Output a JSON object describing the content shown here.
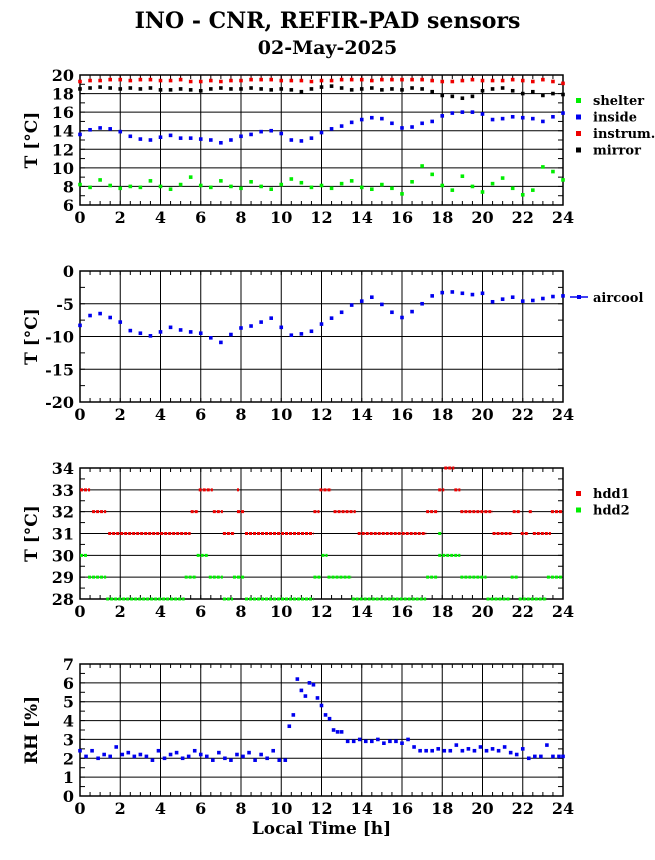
{
  "header": {
    "title": "INO - CNR, REFIR-PAD sensors",
    "subtitle": "02-May-2025"
  },
  "colors": {
    "shelter": "#00ee00",
    "inside": "#0000ee",
    "instrum": "#ee0000",
    "mirror": "#000000",
    "aircool": "#0000ee",
    "hdd1": "#ee0000",
    "hdd2": "#00ee00",
    "rh": "#0000ee"
  },
  "chart_data": [
    {
      "type": "scatter",
      "id": "temps",
      "ylabel": "T [°C]",
      "xlim": [
        0,
        24
      ],
      "ylim": [
        6,
        20
      ],
      "xticks": [
        0,
        2,
        4,
        6,
        8,
        10,
        12,
        14,
        16,
        18,
        20,
        22,
        24
      ],
      "yticks": [
        6,
        8,
        10,
        12,
        14,
        16,
        18,
        20
      ],
      "grid": true,
      "legend": "right",
      "series": [
        {
          "name": "shelter",
          "color_key": "shelter",
          "x": [
            0,
            0.5,
            1,
            1.5,
            2,
            2.5,
            3,
            3.5,
            4,
            4.5,
            5,
            5.5,
            6,
            6.5,
            7,
            7.5,
            8,
            8.5,
            9,
            9.5,
            10,
            10.5,
            11,
            11.5,
            12,
            12.5,
            13,
            13.5,
            14,
            14.5,
            15,
            15.5,
            16,
            16.5,
            17,
            17.5,
            18,
            18.5,
            19,
            19.5,
            20,
            20.5,
            21,
            21.5,
            22,
            22.5,
            23,
            23.5,
            24
          ],
          "y": [
            8.2,
            7.9,
            8.7,
            8.1,
            7.8,
            8.0,
            7.9,
            8.6,
            8.0,
            7.7,
            8.2,
            9.0,
            8.1,
            7.9,
            8.6,
            8.0,
            7.8,
            8.5,
            8.0,
            7.7,
            8.2,
            8.8,
            8.4,
            7.9,
            8.1,
            7.8,
            8.3,
            8.6,
            7.9,
            7.7,
            8.2,
            7.8,
            7.2,
            8.5,
            10.2,
            9.3,
            8.1,
            7.6,
            9.1,
            8.0,
            7.4,
            8.3,
            8.9,
            7.8,
            7.1,
            7.6,
            10.1,
            9.6,
            8.7
          ]
        },
        {
          "name": "inside",
          "color_key": "inside",
          "x": [
            0,
            0.5,
            1,
            1.5,
            2,
            2.5,
            3,
            3.5,
            4,
            4.5,
            5,
            5.5,
            6,
            6.5,
            7,
            7.5,
            8,
            8.5,
            9,
            9.5,
            10,
            10.5,
            11,
            11.5,
            12,
            12.5,
            13,
            13.5,
            14,
            14.5,
            15,
            15.5,
            16,
            16.5,
            17,
            17.5,
            18,
            18.5,
            19,
            19.5,
            20,
            20.5,
            21,
            21.5,
            22,
            22.5,
            23,
            23.5,
            24
          ],
          "y": [
            13.6,
            14.1,
            14.3,
            14.2,
            13.9,
            13.4,
            13.1,
            13.0,
            13.3,
            13.5,
            13.2,
            13.2,
            13.1,
            13.0,
            12.7,
            13.0,
            13.4,
            13.6,
            13.9,
            14.0,
            13.7,
            13.0,
            12.9,
            13.2,
            13.8,
            14.2,
            14.5,
            14.9,
            15.2,
            15.4,
            15.3,
            14.8,
            14.3,
            14.4,
            14.8,
            15.0,
            15.6,
            15.9,
            16.0,
            16.0,
            15.8,
            15.2,
            15.3,
            15.5,
            15.4,
            15.3,
            15.0,
            15.5,
            15.9
          ]
        },
        {
          "name": "instrum.",
          "color_key": "instrum",
          "x": [
            0,
            0.5,
            1,
            1.5,
            2,
            2.5,
            3,
            3.5,
            4,
            4.5,
            5,
            5.5,
            6,
            6.5,
            7,
            7.5,
            8,
            8.5,
            9,
            9.5,
            10,
            10.5,
            11,
            11.5,
            12,
            12.5,
            13,
            13.5,
            14,
            14.5,
            15,
            15.5,
            16,
            16.5,
            17,
            17.5,
            18,
            18.5,
            19,
            19.5,
            20,
            20.5,
            21,
            21.5,
            22,
            22.5,
            23,
            23.5,
            24
          ],
          "y": [
            19.3,
            19.4,
            19.4,
            19.5,
            19.5,
            19.4,
            19.5,
            19.5,
            19.4,
            19.4,
            19.5,
            19.3,
            19.3,
            19.4,
            19.3,
            19.4,
            19.4,
            19.5,
            19.5,
            19.5,
            19.4,
            19.4,
            19.4,
            19.3,
            19.4,
            19.4,
            19.5,
            19.5,
            19.5,
            19.4,
            19.5,
            19.5,
            19.5,
            19.5,
            19.5,
            19.4,
            19.3,
            19.3,
            19.4,
            19.5,
            19.4,
            19.4,
            19.4,
            19.5,
            19.4,
            19.3,
            19.5,
            19.3,
            19.1
          ]
        },
        {
          "name": "mirror",
          "color_key": "mirror",
          "x": [
            0,
            0.5,
            1,
            1.5,
            2,
            2.5,
            3,
            3.5,
            4,
            4.5,
            5,
            5.5,
            6,
            6.5,
            7,
            7.5,
            8,
            8.5,
            9,
            9.5,
            10,
            10.5,
            11,
            11.5,
            12,
            12.5,
            13,
            13.5,
            14,
            14.5,
            15,
            15.5,
            16,
            16.5,
            17,
            17.5,
            18,
            18.5,
            19,
            19.5,
            20,
            20.5,
            21,
            21.5,
            22,
            22.5,
            23,
            23.5,
            24
          ],
          "y": [
            18.5,
            18.6,
            18.7,
            18.6,
            18.5,
            18.6,
            18.5,
            18.6,
            18.4,
            18.4,
            18.5,
            18.4,
            18.3,
            18.5,
            18.6,
            18.5,
            18.5,
            18.6,
            18.5,
            18.4,
            18.5,
            18.4,
            18.2,
            18.5,
            18.7,
            18.8,
            18.6,
            18.4,
            18.5,
            18.6,
            18.4,
            18.5,
            18.4,
            18.6,
            18.5,
            18.2,
            17.8,
            17.7,
            17.5,
            17.7,
            18.3,
            18.5,
            18.6,
            18.3,
            18.0,
            18.2,
            17.8,
            18.0,
            17.9
          ]
        }
      ]
    },
    {
      "type": "scatter",
      "id": "aircool",
      "ylabel": "T [°C]",
      "xlim": [
        0,
        24
      ],
      "ylim": [
        -20,
        0
      ],
      "xticks": [
        0,
        2,
        4,
        6,
        8,
        10,
        12,
        14,
        16,
        18,
        20,
        22,
        24
      ],
      "yticks": [
        -20,
        -15,
        -10,
        -5,
        0
      ],
      "grid": true,
      "legend": "right",
      "series": [
        {
          "name": "aircool",
          "color_key": "aircool",
          "x": [
            0,
            0.5,
            1,
            1.5,
            2,
            2.5,
            3,
            3.5,
            4,
            4.5,
            5,
            5.5,
            6,
            6.5,
            7,
            7.5,
            8,
            8.5,
            9,
            9.5,
            10,
            10.5,
            11,
            11.5,
            12,
            12.5,
            13,
            13.5,
            14,
            14.5,
            15,
            15.5,
            16,
            16.5,
            17,
            17.5,
            18,
            18.5,
            19,
            19.5,
            20,
            20.5,
            21,
            21.5,
            22,
            22.5,
            23,
            23.5,
            24
          ],
          "y": [
            -8.3,
            -6.8,
            -6.5,
            -7.1,
            -7.8,
            -9.1,
            -9.5,
            -9.9,
            -9.3,
            -8.6,
            -9.0,
            -9.3,
            -9.5,
            -10.2,
            -10.9,
            -9.7,
            -8.7,
            -8.4,
            -7.8,
            -7.2,
            -8.6,
            -9.8,
            -9.6,
            -9.2,
            -8.1,
            -7.2,
            -6.3,
            -5.2,
            -4.6,
            -4.0,
            -5.1,
            -6.3,
            -7.1,
            -6.2,
            -5.0,
            -3.8,
            -3.3,
            -3.2,
            -3.4,
            -3.6,
            -3.4,
            -4.7,
            -4.3,
            -4.0,
            -4.6,
            -4.5,
            -4.2,
            -3.9,
            -3.8
          ]
        }
      ]
    },
    {
      "type": "scatter",
      "id": "hdd",
      "ylabel": "T [°C]",
      "xlim": [
        0,
        24
      ],
      "ylim": [
        28,
        34
      ],
      "xticks": [
        0,
        2,
        4,
        6,
        8,
        10,
        12,
        14,
        16,
        18,
        20,
        22,
        24
      ],
      "yticks": [
        28,
        29,
        30,
        31,
        32,
        33,
        34
      ],
      "grid": true,
      "legend": "right",
      "series": [
        {
          "name": "hdd1",
          "color_key": "hdd1",
          "segments": [
            [
              0,
              0.5,
              33
            ],
            [
              0.6,
              1.3,
              32
            ],
            [
              1.4,
              5.5,
              31
            ],
            [
              5.5,
              5.9,
              32
            ],
            [
              5.9,
              6.6,
              33
            ],
            [
              6.6,
              7.1,
              32
            ],
            [
              7.1,
              7.7,
              31
            ],
            [
              7.8,
              7.9,
              33
            ],
            [
              7.8,
              8.2,
              32
            ],
            [
              8.2,
              11.6,
              31
            ],
            [
              11.6,
              11.9,
              32
            ],
            [
              11.9,
              12.5,
              33
            ],
            [
              12.6,
              13.7,
              32
            ],
            [
              13.8,
              17.2,
              31
            ],
            [
              17.2,
              17.8,
              32
            ],
            [
              17.8,
              18.1,
              33
            ],
            [
              18.1,
              18.6,
              34
            ],
            [
              18.6,
              18.9,
              33
            ],
            [
              18.9,
              20.5,
              32
            ],
            [
              20.5,
              21.5,
              31
            ],
            [
              21.5,
              21.9,
              32
            ],
            [
              21.9,
              22.3,
              31
            ],
            [
              22.3,
              22.5,
              32
            ],
            [
              22.5,
              23.4,
              31
            ],
            [
              23.4,
              24,
              32
            ]
          ]
        },
        {
          "name": "hdd2",
          "color_key": "hdd2",
          "segments": [
            [
              0,
              0.4,
              30
            ],
            [
              0.4,
              1.3,
              29
            ],
            [
              1.3,
              5.2,
              28
            ],
            [
              5.2,
              5.8,
              29
            ],
            [
              5.8,
              6.4,
              30
            ],
            [
              6.4,
              7.1,
              29
            ],
            [
              7.1,
              7.6,
              28
            ],
            [
              7.6,
              8.2,
              29
            ],
            [
              8.2,
              11.6,
              28
            ],
            [
              11.6,
              12.0,
              29
            ],
            [
              12.0,
              12.3,
              30
            ],
            [
              12.3,
              13.5,
              29
            ],
            [
              13.5,
              17.2,
              28
            ],
            [
              17.2,
              17.8,
              29
            ],
            [
              17.8,
              18.0,
              31
            ],
            [
              17.8,
              18.9,
              30
            ],
            [
              18.9,
              20.2,
              29
            ],
            [
              20.2,
              21.4,
              28
            ],
            [
              21.4,
              21.8,
              29
            ],
            [
              21.8,
              23.2,
              28
            ],
            [
              23.2,
              24,
              29
            ]
          ]
        }
      ]
    },
    {
      "type": "scatter",
      "id": "rh",
      "ylabel": "RH [%]",
      "xlabel": "Local Time [h]",
      "xlim": [
        0,
        24
      ],
      "ylim": [
        0,
        7
      ],
      "xticks": [
        0,
        2,
        4,
        6,
        8,
        10,
        12,
        14,
        16,
        18,
        20,
        22,
        24
      ],
      "yticks": [
        0,
        1,
        2,
        3,
        4,
        5,
        6,
        7
      ],
      "grid": true,
      "series": [
        {
          "name": "RH",
          "color_key": "rh",
          "x": [
            0,
            0.3,
            0.6,
            0.9,
            1.2,
            1.5,
            1.8,
            2.1,
            2.4,
            2.7,
            3.0,
            3.3,
            3.6,
            3.9,
            4.2,
            4.5,
            4.8,
            5.1,
            5.4,
            5.7,
            6.0,
            6.3,
            6.6,
            6.9,
            7.2,
            7.5,
            7.8,
            8.1,
            8.4,
            8.7,
            9.0,
            9.3,
            9.6,
            9.9,
            10.2,
            10.4,
            10.6,
            10.8,
            11.0,
            11.2,
            11.4,
            11.6,
            11.8,
            12.0,
            12.2,
            12.4,
            12.6,
            12.8,
            13.0,
            13.3,
            13.6,
            13.9,
            14.2,
            14.5,
            14.8,
            15.1,
            15.4,
            15.7,
            16.0,
            16.3,
            16.6,
            16.9,
            17.2,
            17.5,
            17.8,
            18.1,
            18.4,
            18.7,
            19.0,
            19.3,
            19.6,
            19.9,
            20.2,
            20.5,
            20.8,
            21.1,
            21.4,
            21.7,
            22.0,
            22.3,
            22.6,
            22.9,
            23.2,
            23.5,
            23.8,
            24
          ],
          "y": [
            2.4,
            2.1,
            2.4,
            2.0,
            2.2,
            2.1,
            2.6,
            2.2,
            2.3,
            2.1,
            2.2,
            2.1,
            1.9,
            2.4,
            2.0,
            2.2,
            2.3,
            2.0,
            2.1,
            2.4,
            2.2,
            2.1,
            1.9,
            2.3,
            2.0,
            1.9,
            2.2,
            2.1,
            2.3,
            1.9,
            2.2,
            2.0,
            2.4,
            1.9,
            1.9,
            3.7,
            4.3,
            6.2,
            5.6,
            5.3,
            6.0,
            5.9,
            5.2,
            4.8,
            4.3,
            4.1,
            3.5,
            3.4,
            3.4,
            2.9,
            2.9,
            3.0,
            2.9,
            2.9,
            3.0,
            2.8,
            2.9,
            2.9,
            2.8,
            3.0,
            2.6,
            2.4,
            2.4,
            2.4,
            2.5,
            2.4,
            2.4,
            2.7,
            2.4,
            2.5,
            2.4,
            2.6,
            2.4,
            2.5,
            2.4,
            2.6,
            2.3,
            2.2,
            2.5,
            2.0,
            2.1,
            2.1,
            2.7,
            2.1,
            2.1,
            2.1
          ]
        }
      ]
    }
  ]
}
